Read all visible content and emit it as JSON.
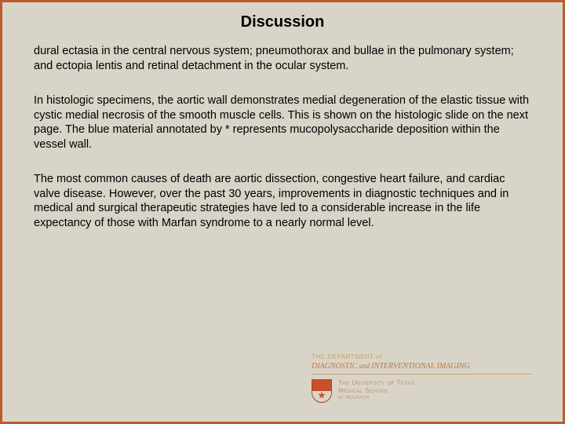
{
  "title": "Discussion",
  "paragraphs": [
    "dural ectasia in the central nervous system; pneumothorax and bullae in the pulmonary system; and ectopia lentis and retinal detachment in the ocular system.",
    "In histologic specimens, the aortic wall demonstrates medial degeneration of the elastic tissue with cystic medial necrosis of the smooth muscle cells. This is shown on the histologic slide on the next page. The blue material annotated by * represents mucopolysaccharide deposition within the vessel wall.",
    "The most common causes of death are aortic dissection, congestive heart failure, and cardiac valve disease. However, over the past 30 years, improvements in diagnostic techniques and in medical and surgical therapeutic strategies have led to a considerable increase in the life expectancy of those with Marfan syndrome to a nearly normal level."
  ],
  "logo": {
    "dept_prefix": "THE DEPARTMENT of",
    "dept_name_1": "DIAGNOSTIC",
    "dept_and": " and ",
    "dept_name_2": "INTERVENTIONAL IMAGING",
    "uni_line1": "The University of Texas",
    "uni_line2": "Medical School",
    "uni_line3": "at Houston"
  },
  "colors": {
    "border": "#b85c2e",
    "background": "#d9d4c8",
    "text": "#000000",
    "logo_light": "#c9a26b",
    "logo_orange": "#c07838"
  }
}
